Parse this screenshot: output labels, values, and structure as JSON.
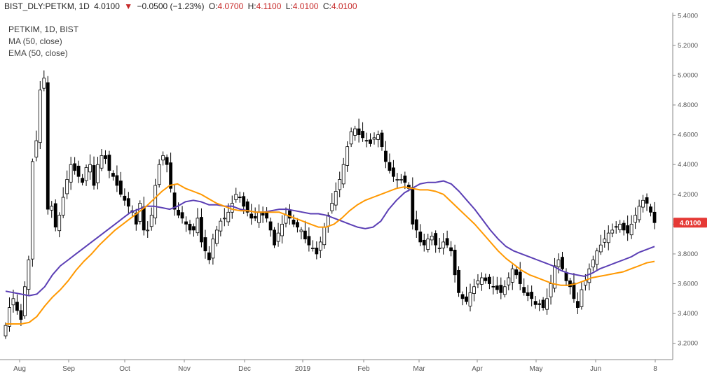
{
  "header": {
    "symbol": "BIST_DLY:PETKM, 1D",
    "last": "4.0100",
    "arrow": "▼",
    "change": "−0.0500 (−1.23%)",
    "o_label": "O:",
    "o_value": "4.0700",
    "h_label": "H:",
    "h_value": "4.1100",
    "l_label": "L:",
    "l_value": "4.0100",
    "c_label": "C:",
    "c_value": "4.0100"
  },
  "legend": {
    "title": "PETKIM, 1D, BIST",
    "ma": "MA (50, close)",
    "ema": "EMA (50, close)"
  },
  "colors": {
    "up": "#ffffff",
    "down": "#000000",
    "wick": "#000000",
    "ma": "#5b3fb5",
    "ema": "#ff9800",
    "price_tag": "#e53935",
    "axis": "#555555"
  },
  "chart_data": {
    "type": "candlestick",
    "title": "PETKIM, 1D, BIST",
    "xlabel": "",
    "ylabel": "",
    "ylim": [
      3.1,
      5.42
    ],
    "x_ticks": [
      "Aug",
      "Sep",
      "Oct",
      "Nov",
      "Dec",
      "2019",
      "Feb",
      "Mar",
      "Apr",
      "May",
      "Jun",
      "8"
    ],
    "y_ticks": [
      "3.2000",
      "3.4000",
      "3.6000",
      "3.8000",
      "4.0000",
      "4.2000",
      "4.4000",
      "4.6000",
      "4.8000",
      "5.0000",
      "5.2000",
      "5.4000"
    ],
    "last_price": "4.0100",
    "close_series": [
      3.32,
      3.44,
      3.5,
      3.42,
      3.36,
      3.58,
      3.76,
      4.42,
      4.56,
      4.9,
      4.98,
      4.1,
      4.12,
      3.98,
      4.06,
      4.18,
      4.3,
      4.4,
      4.36,
      4.32,
      4.28,
      4.38,
      4.4,
      4.26,
      4.4,
      4.46,
      4.44,
      4.36,
      4.32,
      4.26,
      4.2,
      4.16,
      4.12,
      4.08,
      4.0,
      4.14,
      3.96,
      3.96,
      4.06,
      4.26,
      4.4,
      4.46,
      4.4,
      4.24,
      4.1,
      4.06,
      4.04,
      4.0,
      3.96,
      3.96,
      4.04,
      3.88,
      3.82,
      3.76,
      3.9,
      3.96,
      4.02,
      4.04,
      4.08,
      4.14,
      4.2,
      4.18,
      4.12,
      4.08,
      4.04,
      4.04,
      4.08,
      4.06,
      4.04,
      3.96,
      3.86,
      3.94,
      4.0,
      4.06,
      4.04,
      4.0,
      3.98,
      3.96,
      3.9,
      3.86,
      3.84,
      3.8,
      3.88,
      3.98,
      4.06,
      4.14,
      4.22,
      4.3,
      4.4,
      4.52,
      4.62,
      4.64,
      4.6,
      4.58,
      4.56,
      4.54,
      4.58,
      4.6,
      4.52,
      4.42,
      4.36,
      4.32,
      4.3,
      4.3,
      4.28,
      4.24,
      4.0,
      3.96,
      3.88,
      3.86,
      3.9,
      3.92,
      3.86,
      3.84,
      3.88,
      3.86,
      3.82,
      3.66,
      3.54,
      3.5,
      3.48,
      3.54,
      3.58,
      3.62,
      3.64,
      3.62,
      3.6,
      3.58,
      3.56,
      3.54,
      3.58,
      3.64,
      3.7,
      3.66,
      3.6,
      3.54,
      3.52,
      3.5,
      3.46,
      3.46,
      3.44,
      3.5,
      3.6,
      3.72,
      3.76,
      3.7,
      3.62,
      3.58,
      3.5,
      3.44,
      3.56,
      3.62,
      3.7,
      3.76,
      3.82,
      3.86,
      3.9,
      3.94,
      3.96,
      3.98,
      4.0,
      3.96,
      3.94,
      4.0,
      4.06,
      4.12,
      4.16,
      4.14,
      4.08,
      4.01
    ],
    "series": [
      {
        "name": "MA (50, close)",
        "values": [
          3.55,
          3.54,
          3.53,
          3.52,
          3.53,
          3.58,
          3.66,
          3.72,
          3.76,
          3.8,
          3.84,
          3.88,
          3.92,
          3.96,
          4.0,
          4.04,
          4.08,
          4.1,
          4.12,
          4.12,
          4.11,
          4.1,
          4.12,
          4.15,
          4.16,
          4.15,
          4.13,
          4.13,
          4.12,
          4.12,
          4.1,
          4.09,
          4.08,
          4.08,
          4.09,
          4.1,
          4.1,
          4.09,
          4.08,
          4.07,
          4.07,
          4.06,
          4.04,
          4.02,
          4.0,
          3.98,
          3.97,
          3.98,
          4.02,
          4.1,
          4.16,
          4.21,
          4.24,
          4.27,
          4.28,
          4.28,
          4.29,
          4.27,
          4.22,
          4.16,
          4.1,
          4.03,
          3.96,
          3.9,
          3.85,
          3.82,
          3.8,
          3.78,
          3.76,
          3.74,
          3.72,
          3.69,
          3.67,
          3.66,
          3.65,
          3.67,
          3.7,
          3.72,
          3.74,
          3.76,
          3.78,
          3.81,
          3.83,
          3.85
        ]
      },
      {
        "name": "EMA (50, close)",
        "values": [
          3.33,
          3.33,
          3.33,
          3.34,
          3.38,
          3.45,
          3.51,
          3.56,
          3.62,
          3.69,
          3.75,
          3.8,
          3.86,
          3.91,
          3.96,
          4.0,
          4.04,
          4.08,
          4.12,
          4.17,
          4.22,
          4.26,
          4.27,
          4.24,
          4.22,
          4.2,
          4.17,
          4.14,
          4.12,
          4.1,
          4.09,
          4.09,
          4.08,
          4.08,
          4.08,
          4.08,
          4.06,
          4.04,
          4.02,
          4.0,
          3.98,
          3.98,
          4.0,
          4.04,
          4.09,
          4.13,
          4.16,
          4.18,
          4.2,
          4.22,
          4.24,
          4.25,
          4.24,
          4.23,
          4.23,
          4.22,
          4.2,
          4.15,
          4.1,
          4.05,
          4.0,
          3.94,
          3.88,
          3.82,
          3.77,
          3.73,
          3.69,
          3.66,
          3.64,
          3.62,
          3.6,
          3.59,
          3.59,
          3.6,
          3.62,
          3.64,
          3.65,
          3.66,
          3.67,
          3.68,
          3.7,
          3.72,
          3.74,
          3.75
        ]
      }
    ]
  }
}
